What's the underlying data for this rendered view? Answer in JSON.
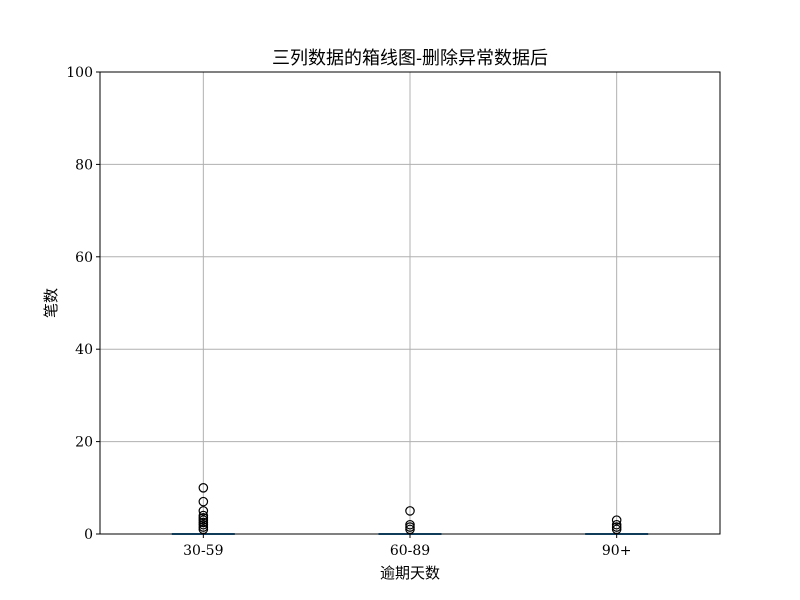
{
  "chart_data": {
    "type": "box",
    "title": "三列数据的箱线图-删除异常数据后",
    "xlabel": "逾期天数",
    "ylabel": "笔数",
    "ylim": [
      0,
      100
    ],
    "yticks": [
      0,
      20,
      40,
      60,
      80,
      100
    ],
    "grid": true,
    "categories": [
      "30-59",
      "60-89",
      "90+"
    ],
    "series": [
      {
        "box": {
          "min": 0,
          "q1": 0,
          "median": 0,
          "q3": 0,
          "max": 0
        },
        "outliers": [
          1,
          1.5,
          2,
          2.5,
          3,
          3.5,
          4,
          5,
          7,
          10
        ]
      },
      {
        "box": {
          "min": 0,
          "q1": 0,
          "median": 0,
          "q3": 0,
          "max": 0
        },
        "outliers": [
          1,
          1.5,
          2,
          5
        ]
      },
      {
        "box": {
          "min": 0,
          "q1": 0,
          "median": 0,
          "q3": 0,
          "max": 0
        },
        "outliers": [
          1,
          1.5,
          2,
          3
        ]
      }
    ],
    "colors": {
      "box": "#1f77b4",
      "median": "#2ca02c",
      "grid": "#b0b0b0",
      "outlier": "#000000"
    }
  }
}
